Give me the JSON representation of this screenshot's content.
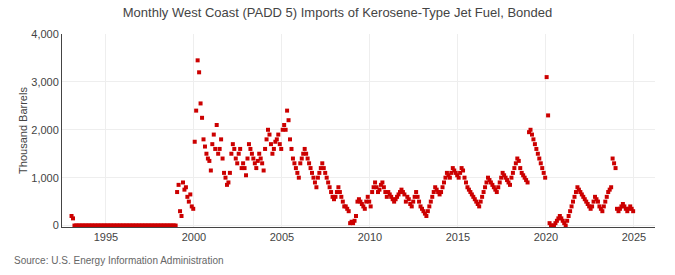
{
  "chart_data": {
    "type": "scatter",
    "title": "Monthly West Coast (PADD 5) Imports of Kerosene-Type Jet Fuel, Bonded",
    "ylabel": "Thousand Barrels",
    "annotations": [
      "Source: U.S. Energy Information Administration"
    ],
    "marker": "square",
    "color": "#cc0000",
    "grid": true,
    "xlim": [
      1992.5,
      2026.2
    ],
    "xticks": [
      1995,
      2000,
      2005,
      2010,
      2015,
      2020,
      2025
    ],
    "ylim": [
      -30,
      4000
    ],
    "yticks": [
      0,
      {
        "value": 1000,
        "label": "1,000"
      },
      {
        "value": 2000,
        "label": "2,000"
      },
      {
        "value": 3000,
        "label": "3,000"
      },
      {
        "value": 4000,
        "label": "4,000"
      }
    ],
    "x": [
      1993.0417,
      1993.125,
      1993.2083,
      1993.2917,
      1993.375,
      1993.4583,
      1993.5417,
      1993.625,
      1993.7083,
      1993.7917,
      1993.875,
      1993.9583,
      1994.0417,
      1994.125,
      1994.2083,
      1994.2917,
      1994.375,
      1994.4583,
      1994.5417,
      1994.625,
      1994.7083,
      1994.7917,
      1994.875,
      1994.9583,
      1995.0417,
      1995.125,
      1995.2083,
      1995.2917,
      1995.375,
      1995.4583,
      1995.5417,
      1995.625,
      1995.7083,
      1995.7917,
      1995.875,
      1995.9583,
      1996.0417,
      1996.125,
      1996.2083,
      1996.2917,
      1996.375,
      1996.4583,
      1996.5417,
      1996.625,
      1996.7083,
      1996.7917,
      1996.875,
      1996.9583,
      1997.0417,
      1997.125,
      1997.2083,
      1997.2917,
      1997.375,
      1997.4583,
      1997.5417,
      1997.625,
      1997.7083,
      1997.7917,
      1997.875,
      1997.9583,
      1998.0417,
      1998.125,
      1998.2083,
      1998.2917,
      1998.375,
      1998.4583,
      1998.5417,
      1998.625,
      1998.7083,
      1998.7917,
      1998.875,
      1998.9583,
      1999.0417,
      1999.125,
      1999.2083,
      1999.2917,
      1999.375,
      1999.4583,
      1999.5417,
      1999.625,
      1999.7083,
      1999.7917,
      1999.875,
      1999.9583,
      2000.0417,
      2000.125,
      2000.2083,
      2000.2917,
      2000.375,
      2000.4583,
      2000.5417,
      2000.625,
      2000.7083,
      2000.7917,
      2000.875,
      2000.9583,
      2001.0417,
      2001.125,
      2001.2083,
      2001.2917,
      2001.375,
      2001.4583,
      2001.5417,
      2001.625,
      2001.7083,
      2001.7917,
      2001.875,
      2001.9583,
      2002.0417,
      2002.125,
      2002.2083,
      2002.2917,
      2002.375,
      2002.4583,
      2002.5417,
      2002.625,
      2002.7083,
      2002.7917,
      2002.875,
      2002.9583,
      2003.0417,
      2003.125,
      2003.2083,
      2003.2917,
      2003.375,
      2003.4583,
      2003.5417,
      2003.625,
      2003.7083,
      2003.7917,
      2003.875,
      2003.9583,
      2004.0417,
      2004.125,
      2004.2083,
      2004.2917,
      2004.375,
      2004.4583,
      2004.5417,
      2004.625,
      2004.7083,
      2004.7917,
      2004.875,
      2004.9583,
      2005.0417,
      2005.125,
      2005.2083,
      2005.2917,
      2005.375,
      2005.4583,
      2005.5417,
      2005.625,
      2005.7083,
      2005.7917,
      2005.875,
      2005.9583,
      2006.0417,
      2006.125,
      2006.2083,
      2006.2917,
      2006.375,
      2006.4583,
      2006.5417,
      2006.625,
      2006.7083,
      2006.7917,
      2006.875,
      2006.9583,
      2007.0417,
      2007.125,
      2007.2083,
      2007.2917,
      2007.375,
      2007.4583,
      2007.5417,
      2007.625,
      2007.7083,
      2007.7917,
      2007.875,
      2007.9583,
      2008.0417,
      2008.125,
      2008.2083,
      2008.2917,
      2008.375,
      2008.4583,
      2008.5417,
      2008.625,
      2008.7083,
      2008.7917,
      2008.875,
      2008.9583,
      2009.0417,
      2009.125,
      2009.2083,
      2009.2917,
      2009.375,
      2009.4583,
      2009.5417,
      2009.625,
      2009.7083,
      2009.7917,
      2009.875,
      2009.9583,
      2010.0417,
      2010.125,
      2010.2083,
      2010.2917,
      2010.375,
      2010.4583,
      2010.5417,
      2010.625,
      2010.7083,
      2010.7917,
      2010.875,
      2010.9583,
      2011.0417,
      2011.125,
      2011.2083,
      2011.2917,
      2011.375,
      2011.4583,
      2011.5417,
      2011.625,
      2011.7083,
      2011.7917,
      2011.875,
      2011.9583,
      2012.0417,
      2012.125,
      2012.2083,
      2012.2917,
      2012.375,
      2012.4583,
      2012.5417,
      2012.625,
      2012.7083,
      2012.7917,
      2012.875,
      2012.9583,
      2013.0417,
      2013.125,
      2013.2083,
      2013.2917,
      2013.375,
      2013.4583,
      2013.5417,
      2013.625,
      2013.7083,
      2013.7917,
      2013.875,
      2013.9583,
      2014.0417,
      2014.125,
      2014.2083,
      2014.2917,
      2014.375,
      2014.4583,
      2014.5417,
      2014.625,
      2014.7083,
      2014.7917,
      2014.875,
      2014.9583,
      2015.0417,
      2015.125,
      2015.2083,
      2015.2917,
      2015.375,
      2015.4583,
      2015.5417,
      2015.625,
      2015.7083,
      2015.7917,
      2015.875,
      2015.9583,
      2016.0417,
      2016.125,
      2016.2083,
      2016.2917,
      2016.375,
      2016.4583,
      2016.5417,
      2016.625,
      2016.7083,
      2016.7917,
      2016.875,
      2016.9583,
      2017.0417,
      2017.125,
      2017.2083,
      2017.2917,
      2017.375,
      2017.4583,
      2017.5417,
      2017.625,
      2017.7083,
      2017.7917,
      2017.875,
      2017.9583,
      2018.0417,
      2018.125,
      2018.2083,
      2018.2917,
      2018.375,
      2018.4583,
      2018.5417,
      2018.625,
      2018.7083,
      2018.7917,
      2018.875,
      2018.9583,
      2019.0417,
      2019.125,
      2019.2083,
      2019.2917,
      2019.375,
      2019.4583,
      2019.5417,
      2019.625,
      2019.7083,
      2019.7917,
      2019.875,
      2019.9583,
      2020.0417,
      2020.125,
      2020.2083,
      2020.2917,
      2020.375,
      2020.4583,
      2020.5417,
      2020.625,
      2020.7083,
      2020.7917,
      2020.875,
      2020.9583,
      2021.0417,
      2021.125,
      2021.2083,
      2021.2917,
      2021.375,
      2021.4583,
      2021.5417,
      2021.625,
      2021.7083,
      2021.7917,
      2021.875,
      2021.9583,
      2022.0417,
      2022.125,
      2022.2083,
      2022.2917,
      2022.375,
      2022.4583,
      2022.5417,
      2022.625,
      2022.7083,
      2022.7917,
      2022.875,
      2022.9583,
      2023.0417,
      2023.125,
      2023.2083,
      2023.2917,
      2023.375,
      2023.4583,
      2023.5417,
      2023.625,
      2023.7083,
      2023.7917,
      2023.875,
      2023.9583,
      2024.0417,
      2024.125,
      2024.2083,
      2024.2917,
      2024.375,
      2024.4583,
      2024.5417,
      2024.625,
      2024.7083,
      2024.7917,
      2024.875,
      2024.9583
    ],
    "values": [
      200,
      150,
      0,
      0,
      0,
      0,
      0,
      0,
      0,
      0,
      0,
      0,
      0,
      0,
      0,
      0,
      0,
      0,
      0,
      0,
      0,
      0,
      0,
      0,
      0,
      0,
      0,
      0,
      0,
      0,
      0,
      0,
      0,
      0,
      0,
      0,
      0,
      0,
      0,
      0,
      0,
      0,
      0,
      0,
      0,
      0,
      0,
      0,
      0,
      0,
      0,
      0,
      0,
      0,
      0,
      0,
      0,
      0,
      0,
      0,
      0,
      0,
      0,
      0,
      0,
      0,
      0,
      0,
      0,
      0,
      0,
      0,
      700,
      850,
      300,
      200,
      900,
      750,
      800,
      600,
      500,
      650,
      400,
      350,
      1750,
      2400,
      3450,
      3200,
      2550,
      2250,
      1800,
      1650,
      1500,
      1400,
      1350,
      1150,
      1700,
      1900,
      1600,
      2100,
      1500,
      1600,
      1800,
      1400,
      1100,
      1000,
      850,
      900,
      1100,
      1500,
      1700,
      1600,
      1400,
      1300,
      1500,
      1600,
      1200,
      1300,
      1200,
      1050,
      1400,
      1700,
      1600,
      1500,
      1400,
      1300,
      1200,
      1350,
      1500,
      1400,
      1300,
      1150,
      1600,
      1800,
      2000,
      1900,
      1700,
      1500,
      1600,
      1750,
      1800,
      1900,
      1700,
      1600,
      2000,
      2100,
      2000,
      2400,
      2200,
      1800,
      1600,
      1400,
      1300,
      1200,
      1100,
      1000,
      1300,
      1400,
      1500,
      1600,
      1500,
      1400,
      1300,
      1200,
      1100,
      1000,
      900,
      800,
      1000,
      1100,
      1200,
      1300,
      1200,
      1100,
      1000,
      900,
      800,
      700,
      600,
      550,
      600,
      700,
      800,
      700,
      600,
      500,
      400,
      400,
      350,
      300,
      50,
      80,
      50,
      100,
      200,
      500,
      550,
      500,
      450,
      400,
      350,
      500,
      600,
      500,
      400,
      700,
      800,
      900,
      800,
      700,
      750,
      850,
      900,
      800,
      700,
      600,
      700,
      650,
      600,
      550,
      500,
      550,
      600,
      650,
      700,
      750,
      700,
      650,
      500,
      600,
      550,
      450,
      400,
      500,
      600,
      700,
      600,
      500,
      400,
      350,
      300,
      250,
      200,
      300,
      400,
      500,
      600,
      700,
      800,
      750,
      700,
      650,
      700,
      800,
      900,
      1000,
      1100,
      1050,
      1000,
      1100,
      1200,
      1150,
      1100,
      1050,
      1000,
      1100,
      1200,
      1150,
      1000,
      900,
      800,
      750,
      700,
      650,
      600,
      550,
      500,
      450,
      400,
      500,
      600,
      700,
      800,
      900,
      1000,
      950,
      900,
      850,
      800,
      750,
      700,
      800,
      900,
      1000,
      1100,
      1050,
      1000,
      950,
      900,
      850,
      1000,
      1100,
      1200,
      1300,
      1400,
      1350,
      1200,
      1100,
      1050,
      1000,
      950,
      900,
      1950,
      2000,
      1900,
      1800,
      1700,
      1600,
      1500,
      1400,
      1300,
      1200,
      1100,
      1000,
      3100,
      2300,
      50,
      0,
      0,
      0,
      50,
      100,
      150,
      200,
      150,
      100,
      50,
      0,
      100,
      200,
      300,
      400,
      500,
      600,
      700,
      800,
      750,
      700,
      650,
      600,
      550,
      500,
      450,
      400,
      350,
      400,
      500,
      600,
      550,
      500,
      400,
      350,
      300,
      400,
      500,
      600,
      700,
      750,
      800,
      1400,
      1300,
      1200,
      350,
      300,
      350,
      400,
      450,
      400,
      350,
      300,
      350,
      400,
      350,
      300
    ]
  }
}
